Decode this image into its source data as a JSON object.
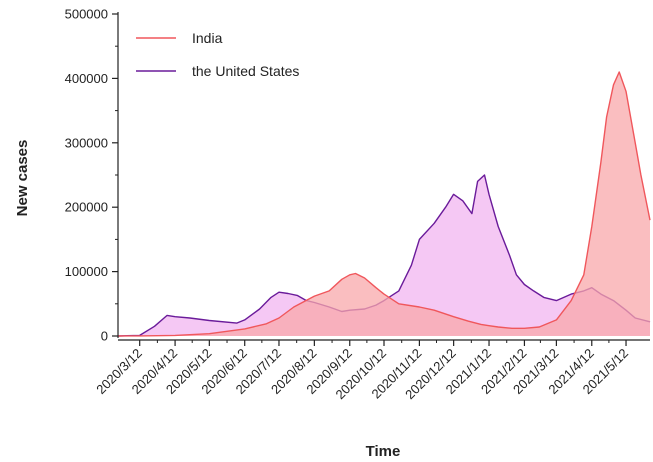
{
  "chart_data": {
    "type": "area",
    "xlabel": "Time",
    "ylabel": "New cases",
    "ylim": [
      0,
      500000
    ],
    "yticks": [
      0,
      100000,
      200000,
      300000,
      400000,
      500000
    ],
    "yticklabels": [
      "0",
      "100000",
      "200000",
      "300000",
      "400000",
      "500000"
    ],
    "xlim": [
      "2020-02-22",
      "2021-06-02"
    ],
    "xticks": [
      "2020-03-12",
      "2020-04-12",
      "2020-05-12",
      "2020-06-12",
      "2020-07-12",
      "2020-08-12",
      "2020-09-12",
      "2020-10-12",
      "2020-11-12",
      "2020-12-12",
      "2021-01-12",
      "2021-02-12",
      "2021-03-12",
      "2021-04-12",
      "2021-05-12"
    ],
    "xticklabels": [
      "2020/3/12",
      "2020/4/12",
      "2020/5/12",
      "2020/6/12",
      "2020/7/12",
      "2020/8/12",
      "2020/9/12",
      "2020/10/12",
      "2020/11/12",
      "2020/12/12",
      "2021/1/12",
      "2021/2/12",
      "2021/3/12",
      "2021/4/12",
      "2021/5/12"
    ],
    "legend_position": "top-left",
    "grid": false,
    "series": [
      {
        "name": "India",
        "color": "#f0575c",
        "fill": "#f8a8ab",
        "x": [
          "2020-02-22",
          "2020-03-12",
          "2020-04-12",
          "2020-05-12",
          "2020-06-12",
          "2020-07-01",
          "2020-07-12",
          "2020-07-25",
          "2020-08-12",
          "2020-08-25",
          "2020-09-05",
          "2020-09-12",
          "2020-09-17",
          "2020-09-25",
          "2020-10-05",
          "2020-10-12",
          "2020-10-25",
          "2020-11-12",
          "2020-11-25",
          "2020-12-12",
          "2020-12-25",
          "2021-01-05",
          "2021-01-12",
          "2021-01-20",
          "2021-02-01",
          "2021-02-12",
          "2021-02-25",
          "2021-03-12",
          "2021-03-25",
          "2021-04-05",
          "2021-04-12",
          "2021-04-20",
          "2021-04-25",
          "2021-05-01",
          "2021-05-06",
          "2021-05-12",
          "2021-05-20",
          "2021-05-25",
          "2021-06-02"
        ],
        "values": [
          0,
          100,
          1000,
          3500,
          11000,
          19000,
          28000,
          45000,
          62000,
          70000,
          88000,
          95000,
          97000,
          90000,
          75000,
          65000,
          50000,
          45000,
          40000,
          30000,
          23000,
          18000,
          16000,
          14000,
          12000,
          12000,
          14000,
          25000,
          55000,
          95000,
          170000,
          270000,
          340000,
          390000,
          410000,
          380000,
          300000,
          250000,
          180000
        ]
      },
      {
        "name": "the United States",
        "color": "#6a1b9a",
        "fill": "#f2b5f0",
        "x": [
          "2020-02-22",
          "2020-03-12",
          "2020-03-25",
          "2020-04-05",
          "2020-04-12",
          "2020-04-25",
          "2020-05-12",
          "2020-06-05",
          "2020-06-12",
          "2020-06-25",
          "2020-07-05",
          "2020-07-12",
          "2020-07-20",
          "2020-07-28",
          "2020-08-05",
          "2020-08-12",
          "2020-08-25",
          "2020-09-05",
          "2020-09-12",
          "2020-09-25",
          "2020-10-05",
          "2020-10-12",
          "2020-10-25",
          "2020-11-05",
          "2020-11-12",
          "2020-11-25",
          "2020-12-05",
          "2020-12-12",
          "2020-12-20",
          "2020-12-28",
          "2021-01-02",
          "2021-01-08",
          "2021-01-12",
          "2021-01-20",
          "2021-01-30",
          "2021-02-05",
          "2021-02-12",
          "2021-02-20",
          "2021-03-01",
          "2021-03-12",
          "2021-03-25",
          "2021-04-05",
          "2021-04-12",
          "2021-04-20",
          "2021-05-01",
          "2021-05-12",
          "2021-05-20",
          "2021-06-02"
        ],
        "values": [
          0,
          1000,
          15000,
          32000,
          30000,
          28000,
          24000,
          20000,
          25000,
          42000,
          60000,
          68000,
          66000,
          63000,
          55000,
          52000,
          45000,
          38000,
          40000,
          42000,
          48000,
          55000,
          70000,
          110000,
          150000,
          175000,
          200000,
          220000,
          210000,
          190000,
          240000,
          250000,
          220000,
          170000,
          125000,
          95000,
          80000,
          70000,
          60000,
          55000,
          65000,
          70000,
          75000,
          65000,
          55000,
          40000,
          28000,
          22000
        ]
      }
    ]
  }
}
